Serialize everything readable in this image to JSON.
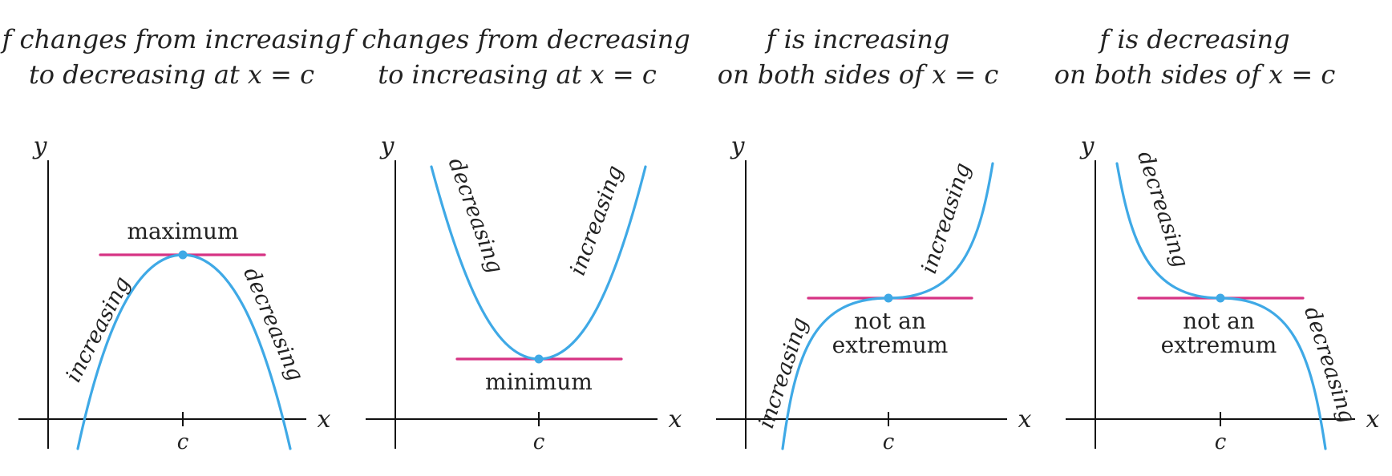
{
  "colors": {
    "curve": "#3FA9E6",
    "tangent": "#D63384",
    "point": "#3FA9E6",
    "axis": "#111111"
  },
  "axes": {
    "x_label": "x",
    "y_label": "y",
    "tick_label": "c"
  },
  "panels": [
    {
      "id": "max",
      "title_lines": [
        "f changes from increasing",
        "to decreasing at x = c"
      ],
      "curve_labels": [
        "increasing",
        "decreasing"
      ],
      "point_label_lines": [
        "maximum"
      ]
    },
    {
      "id": "min",
      "title_lines": [
        "f changes from decreasing",
        "to increasing at x = c"
      ],
      "curve_labels": [
        "decreasing",
        "increasing"
      ],
      "point_label_lines": [
        "minimum"
      ]
    },
    {
      "id": "inc",
      "title_lines": [
        "f is increasing",
        "on both sides of x = c"
      ],
      "curve_labels": [
        "increasing",
        "increasing"
      ],
      "point_label_lines": [
        "not an",
        "extremum"
      ]
    },
    {
      "id": "dec",
      "title_lines": [
        "f is decreasing",
        "on both sides of x = c"
      ],
      "curve_labels": [
        "decreasing",
        "decreasing"
      ],
      "point_label_lines": [
        "not an",
        "extremum"
      ]
    }
  ]
}
